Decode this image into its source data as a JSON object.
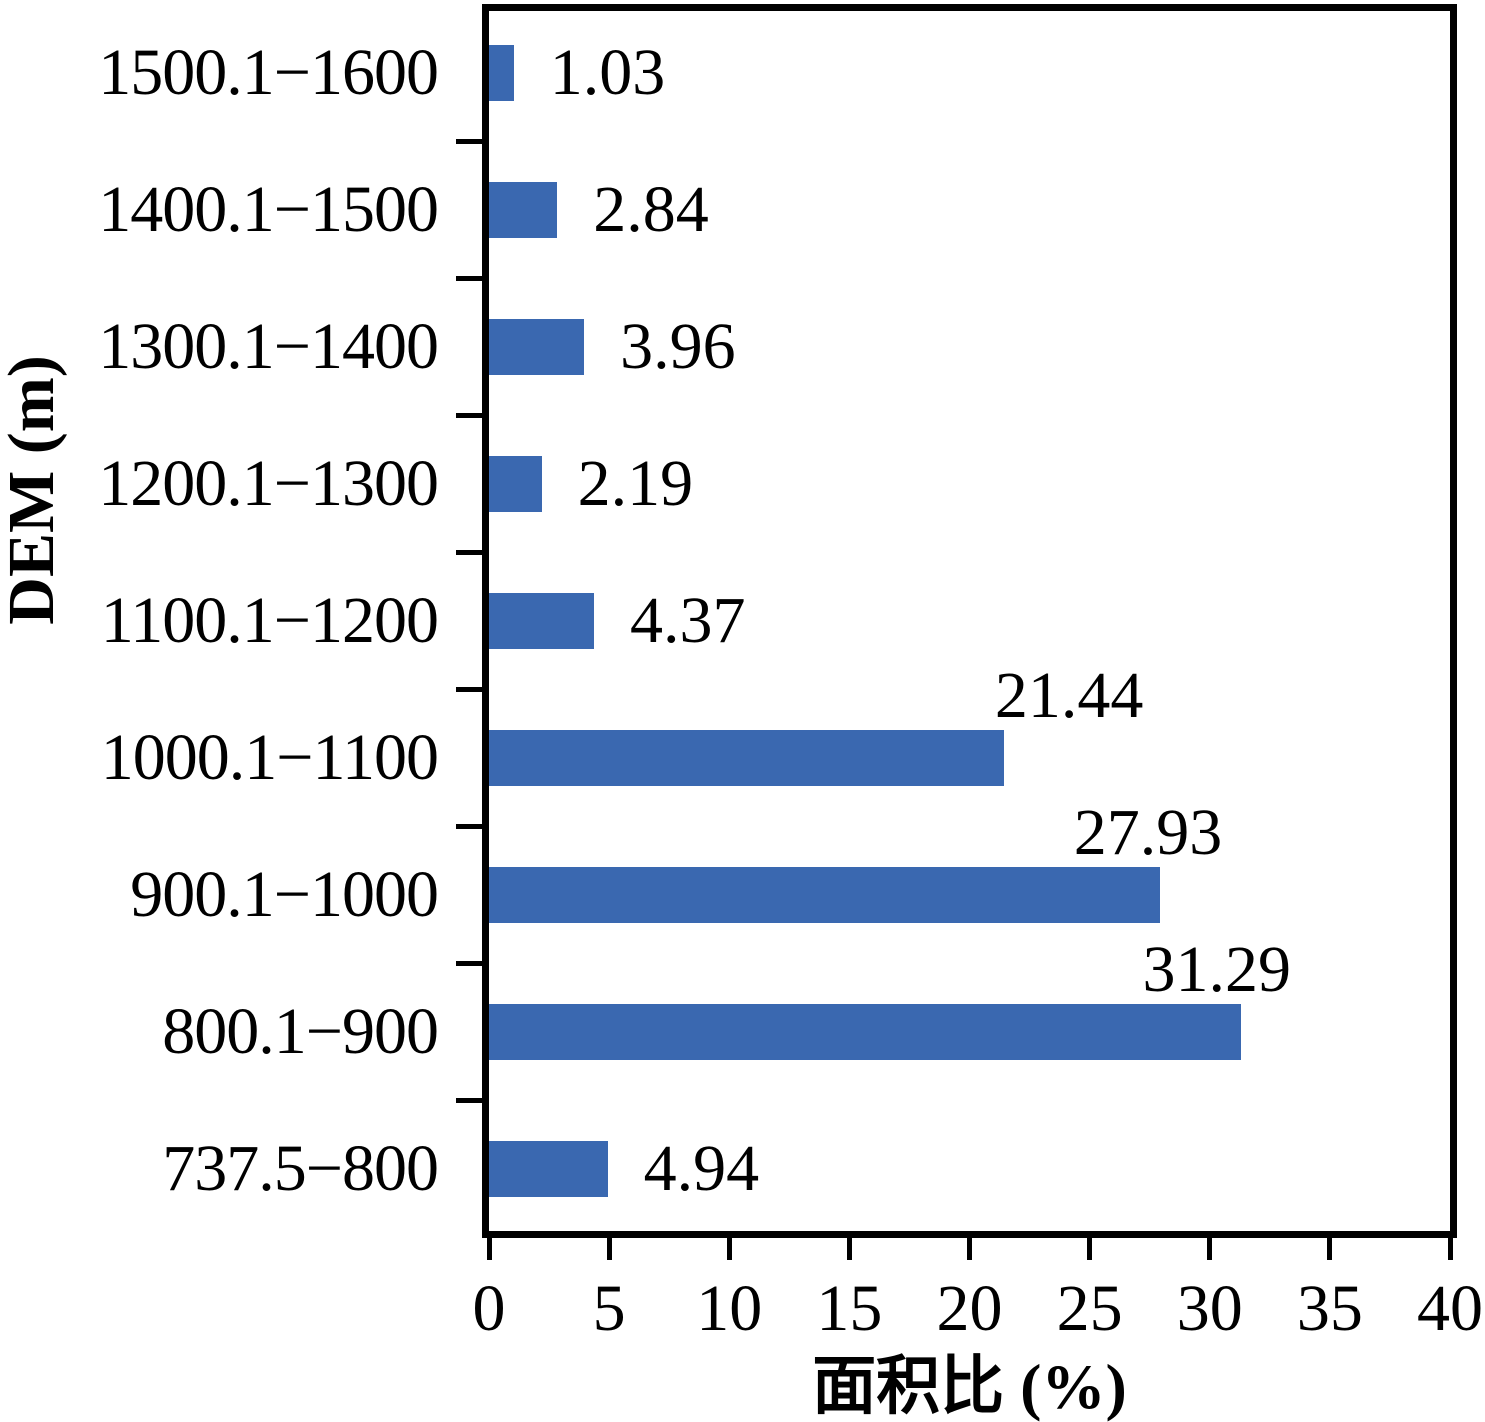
{
  "chart_data": {
    "type": "bar",
    "orientation": "horizontal",
    "title": "",
    "xlabel": "面积比 (%)",
    "ylabel": "DEM (m)",
    "categories": [
      "1500.1−1600",
      "1400.1−1500",
      "1300.1−1400",
      "1200.1−1300",
      "1100.1−1200",
      "1000.1−1100",
      "900.1−1000",
      "800.1−900",
      "737.5−800"
    ],
    "values": [
      1.03,
      2.84,
      3.96,
      2.19,
      4.37,
      21.44,
      27.93,
      31.29,
      4.94
    ],
    "value_labels": [
      "1.03",
      "2.84",
      "3.96",
      "2.19",
      "4.37",
      "21.44",
      "27.93",
      "31.29",
      "4.94"
    ],
    "label_placement": [
      "right",
      "right",
      "right",
      "right",
      "right",
      "above",
      "above",
      "above",
      "right"
    ],
    "label_dx": [
      0,
      0,
      0,
      0,
      0,
      65,
      -12,
      -24,
      0
    ],
    "x_ticks": [
      "0",
      "5",
      "10",
      "15",
      "20",
      "25",
      "30",
      "35",
      "40"
    ],
    "x_tick_values": [
      0,
      5,
      10,
      15,
      20,
      25,
      30,
      35,
      40
    ],
    "xlim": [
      0,
      40
    ],
    "grid": false,
    "legend": false,
    "bar_color": "#3A68B0",
    "axis_color": "#000000",
    "text_color": "#000000"
  }
}
